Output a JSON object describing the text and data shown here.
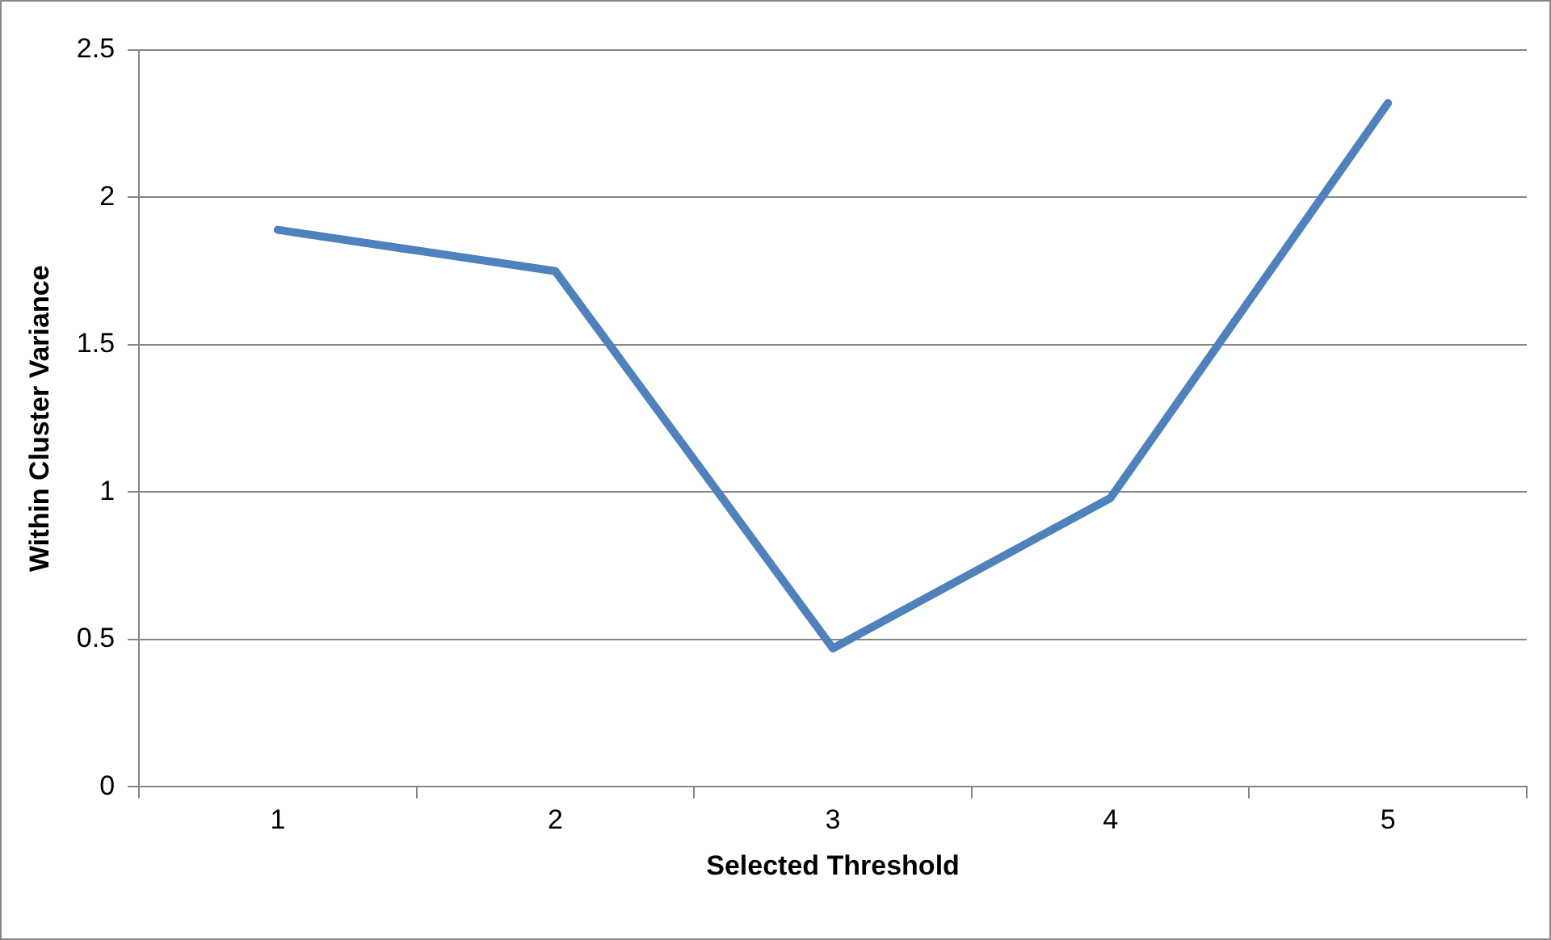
{
  "chart_data": {
    "type": "line",
    "xlabel": "Selected Threshold",
    "ylabel": "Within Cluster Variance",
    "categories": [
      "1",
      "2",
      "3",
      "4",
      "5"
    ],
    "series": [
      {
        "color": "#4f81bd",
        "values": [
          1.89,
          1.75,
          0.47,
          0.98,
          2.32
        ]
      }
    ],
    "ylim": [
      0,
      2.5
    ],
    "yticks": [
      0,
      0.5,
      1,
      1.5,
      2,
      2.5
    ],
    "grid": "y",
    "legend": false,
    "marker": "none",
    "line_style": "solid"
  }
}
